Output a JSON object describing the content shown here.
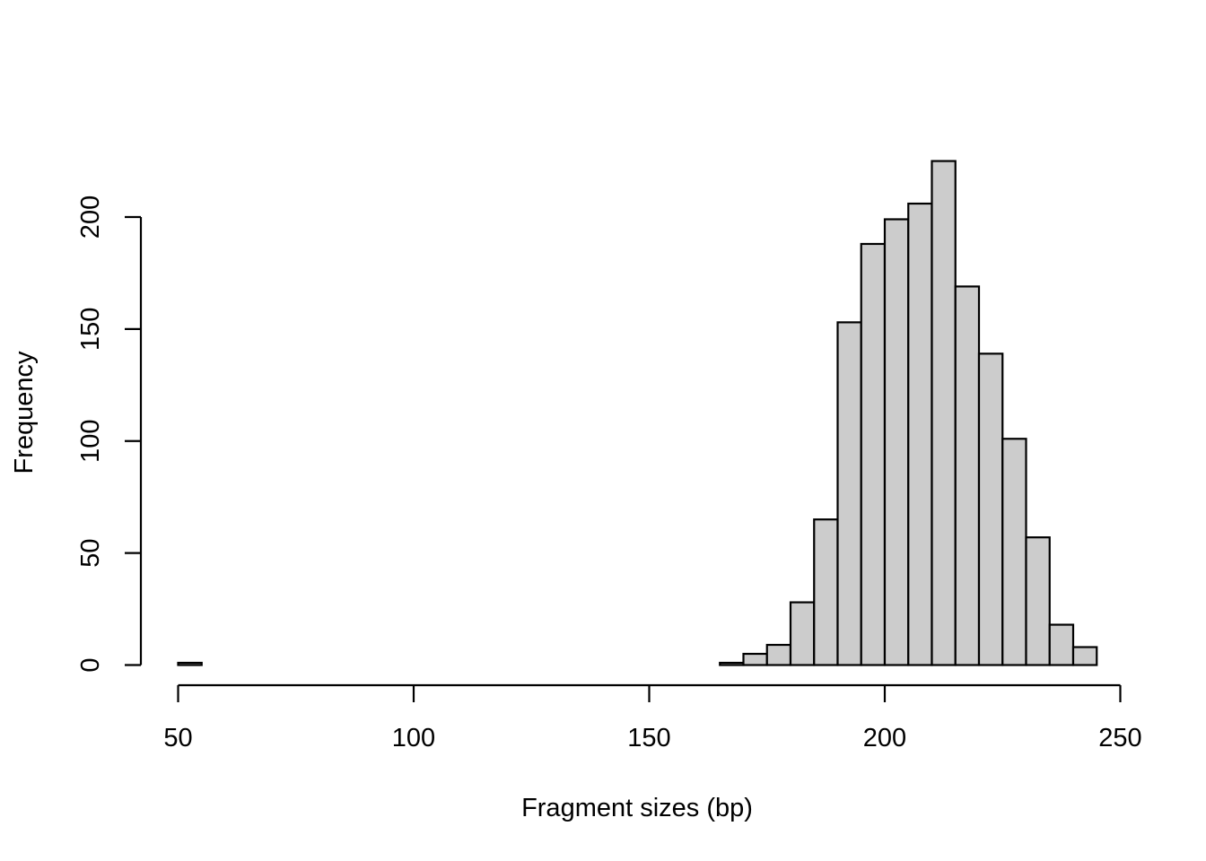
{
  "chart_data": {
    "type": "bar",
    "subtype": "histogram",
    "title": "",
    "xlabel": "Fragment sizes (bp)",
    "ylabel": "Frequency",
    "bin_width": 5,
    "bins": [
      {
        "from": 50,
        "to": 55,
        "count": 1
      },
      {
        "from": 55,
        "to": 60,
        "count": 0
      },
      {
        "from": 60,
        "to": 65,
        "count": 0
      },
      {
        "from": 65,
        "to": 70,
        "count": 0
      },
      {
        "from": 70,
        "to": 75,
        "count": 0
      },
      {
        "from": 75,
        "to": 80,
        "count": 0
      },
      {
        "from": 80,
        "to": 85,
        "count": 0
      },
      {
        "from": 85,
        "to": 90,
        "count": 0
      },
      {
        "from": 90,
        "to": 95,
        "count": 0
      },
      {
        "from": 95,
        "to": 100,
        "count": 0
      },
      {
        "from": 100,
        "to": 105,
        "count": 0
      },
      {
        "from": 105,
        "to": 110,
        "count": 0
      },
      {
        "from": 110,
        "to": 115,
        "count": 0
      },
      {
        "from": 115,
        "to": 120,
        "count": 0
      },
      {
        "from": 120,
        "to": 125,
        "count": 0
      },
      {
        "from": 125,
        "to": 130,
        "count": 0
      },
      {
        "from": 130,
        "to": 135,
        "count": 0
      },
      {
        "from": 135,
        "to": 140,
        "count": 0
      },
      {
        "from": 140,
        "to": 145,
        "count": 0
      },
      {
        "from": 145,
        "to": 150,
        "count": 0
      },
      {
        "from": 150,
        "to": 155,
        "count": 0
      },
      {
        "from": 155,
        "to": 160,
        "count": 0
      },
      {
        "from": 160,
        "to": 165,
        "count": 0
      },
      {
        "from": 165,
        "to": 170,
        "count": 1
      },
      {
        "from": 170,
        "to": 175,
        "count": 5
      },
      {
        "from": 175,
        "to": 180,
        "count": 9
      },
      {
        "from": 180,
        "to": 185,
        "count": 28
      },
      {
        "from": 185,
        "to": 190,
        "count": 65
      },
      {
        "from": 190,
        "to": 195,
        "count": 153
      },
      {
        "from": 195,
        "to": 200,
        "count": 188
      },
      {
        "from": 200,
        "to": 205,
        "count": 199
      },
      {
        "from": 205,
        "to": 210,
        "count": 206
      },
      {
        "from": 210,
        "to": 215,
        "count": 225
      },
      {
        "from": 215,
        "to": 220,
        "count": 169
      },
      {
        "from": 220,
        "to": 225,
        "count": 139
      },
      {
        "from": 225,
        "to": 230,
        "count": 101
      },
      {
        "from": 230,
        "to": 235,
        "count": 57
      },
      {
        "from": 235,
        "to": 240,
        "count": 18
      },
      {
        "from": 240,
        "to": 245,
        "count": 8
      }
    ],
    "x_ticks": [
      50,
      100,
      150,
      200,
      250
    ],
    "y_ticks": [
      0,
      50,
      100,
      150,
      200
    ],
    "xlim": [
      50,
      250
    ],
    "ylim": [
      0,
      225
    ],
    "grid": false,
    "legend": null,
    "bar_fill": "#cccccc",
    "bar_stroke": "#000000"
  }
}
